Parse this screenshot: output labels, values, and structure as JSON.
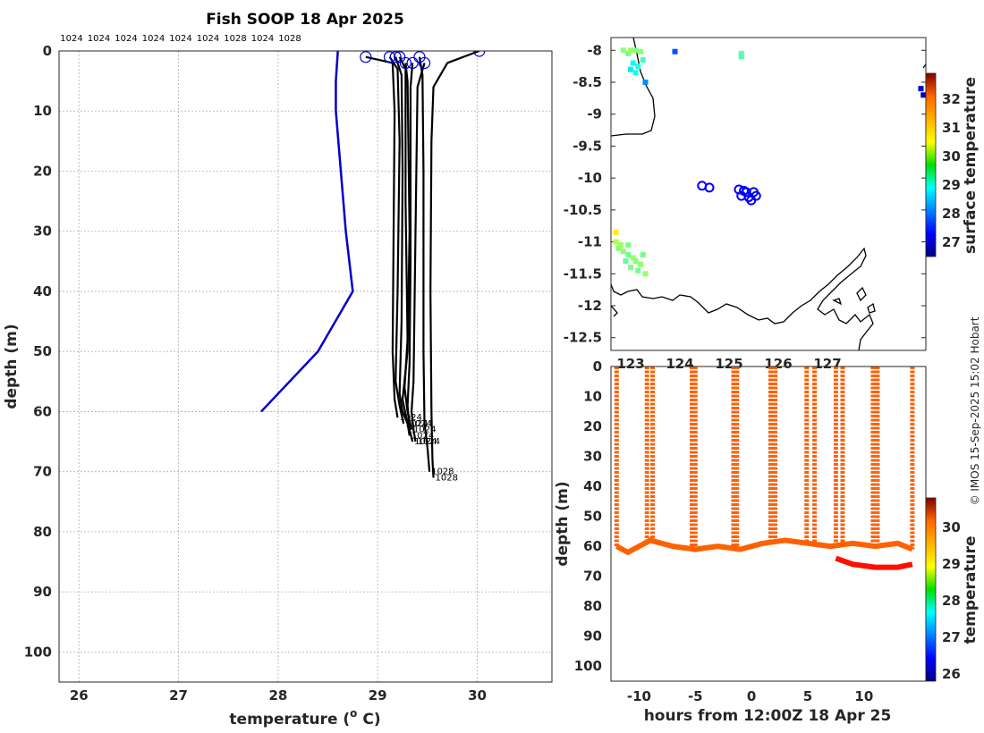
{
  "credit": "© IMOS 15-Sep-2025 15:02 Hobart",
  "chart_data": [
    {
      "type": "line",
      "id": "profile",
      "title": "Fish SOOP 18 Apr 2025",
      "xlabel": "temperature (",
      "xlabel_sup": "o",
      "xlabel_tail": " C)",
      "ylabel": "depth (m)",
      "xlim": [
        25.8,
        30.75
      ],
      "ylim": [
        105,
        0
      ],
      "xticks": [
        26,
        27,
        28,
        29,
        30
      ],
      "yticks": [
        0,
        10,
        20,
        30,
        40,
        50,
        60,
        70,
        80,
        90,
        100
      ],
      "top_labels": [
        "1024",
        "1024",
        "1024",
        "1024",
        "1024",
        "1024",
        "1028",
        "1024",
        "1028"
      ],
      "climatology": {
        "color": "#0000cc",
        "points": [
          [
            28.6,
            0
          ],
          [
            28.58,
            5
          ],
          [
            28.58,
            10
          ],
          [
            28.63,
            20
          ],
          [
            28.68,
            30
          ],
          [
            28.75,
            40
          ],
          [
            28.4,
            50
          ],
          [
            27.83,
            60
          ]
        ]
      },
      "casts": [
        {
          "id": "1024",
          "points": [
            [
              28.88,
              1
            ],
            [
              29.15,
              2
            ],
            [
              29.17,
              10
            ],
            [
              29.16,
              30
            ],
            [
              29.15,
              50
            ],
            [
              29.17,
              58
            ],
            [
              29.2,
              61
            ]
          ]
        },
        {
          "id": "1024",
          "points": [
            [
              29.12,
              1
            ],
            [
              29.2,
              3
            ],
            [
              29.22,
              15
            ],
            [
              29.2,
              40
            ],
            [
              29.18,
              55
            ],
            [
              29.22,
              59
            ],
            [
              29.26,
              62
            ]
          ]
        },
        {
          "id": "1024",
          "points": [
            [
              29.18,
              1
            ],
            [
              29.24,
              4
            ],
            [
              29.25,
              20
            ],
            [
              29.24,
              45
            ],
            [
              29.22,
              57
            ],
            [
              29.25,
              60
            ],
            [
              29.3,
              62
            ]
          ]
        },
        {
          "id": "1024",
          "points": [
            [
              29.22,
              1
            ],
            [
              29.28,
              3
            ],
            [
              29.28,
              25
            ],
            [
              29.3,
              48
            ],
            [
              29.27,
              56
            ],
            [
              29.3,
              60
            ],
            [
              29.34,
              63
            ]
          ]
        },
        {
          "id": "1024",
          "points": [
            [
              29.28,
              2
            ],
            [
              29.3,
              5
            ],
            [
              29.32,
              30
            ],
            [
              29.3,
              50
            ],
            [
              29.25,
              58
            ],
            [
              29.3,
              62
            ],
            [
              29.32,
              64
            ]
          ]
        },
        {
          "id": "1024",
          "points": [
            [
              29.35,
              2
            ],
            [
              29.33,
              6
            ],
            [
              29.33,
              35
            ],
            [
              29.32,
              52
            ],
            [
              29.3,
              59
            ],
            [
              29.32,
              63
            ],
            [
              29.35,
              65
            ]
          ]
        },
        {
          "id": "1028",
          "points": [
            [
              29.42,
              1
            ],
            [
              29.45,
              4
            ],
            [
              29.46,
              20
            ],
            [
              29.46,
              50
            ],
            [
              29.47,
              62
            ],
            [
              29.5,
              66
            ],
            [
              29.52,
              70
            ]
          ]
        },
        {
          "id": "1024",
          "points": [
            [
              29.47,
              2
            ],
            [
              29.4,
              6
            ],
            [
              29.38,
              30
            ],
            [
              29.36,
              55
            ],
            [
              29.34,
              60
            ],
            [
              29.36,
              63
            ],
            [
              29.38,
              65
            ]
          ]
        },
        {
          "id": "1028",
          "points": [
            [
              30.02,
              0
            ],
            [
              29.7,
              2
            ],
            [
              29.56,
              6
            ],
            [
              29.54,
              15
            ],
            [
              29.53,
              40
            ],
            [
              29.54,
              60
            ],
            [
              29.55,
              68
            ],
            [
              29.56,
              71
            ]
          ]
        }
      ],
      "bottom_labels": [
        "1024",
        "1024",
        "1024",
        "1024",
        "1028",
        "1028"
      ]
    },
    {
      "type": "scatter",
      "id": "map",
      "colorbar_label": "surface temperature",
      "xlim": [
        122.6,
        129
      ],
      "ylim": [
        -12.7,
        -7.8
      ],
      "xticks": [
        123,
        124,
        125,
        126,
        127
      ],
      "xtick_labels": [
        "123",
        "124",
        "125",
        "126",
        "127"
      ],
      "yticks": [
        -8,
        -8.5,
        -9,
        -9.5,
        -10,
        -10.5,
        -11,
        -11.5,
        -12,
        -12.5
      ],
      "colorbar_range": [
        26.5,
        32.9
      ],
      "colorbar_ticks": [
        27,
        28,
        29,
        30,
        31,
        32
      ],
      "cast_locations": [
        [
          124.45,
          -10.12
        ],
        [
          124.6,
          -10.15
        ],
        [
          125.2,
          -10.18
        ],
        [
          125.25,
          -10.28
        ],
        [
          125.35,
          -10.22
        ],
        [
          125.4,
          -10.3
        ],
        [
          125.45,
          -10.35
        ],
        [
          125.55,
          -10.28
        ],
        [
          125.3,
          -10.2
        ],
        [
          125.5,
          -10.22
        ]
      ],
      "sst_points": [
        [
          122.85,
          -8.0,
          29.8
        ],
        [
          122.95,
          -8.05,
          29.6
        ],
        [
          123.0,
          -8.0,
          29.9
        ],
        [
          123.1,
          -8.0,
          29.7
        ],
        [
          123.2,
          -8.02,
          29.8
        ],
        [
          123.05,
          -8.2,
          28.9
        ],
        [
          123.15,
          -8.25,
          29.1
        ],
        [
          123.0,
          -8.3,
          28.8
        ],
        [
          123.1,
          -8.35,
          29.0
        ],
        [
          123.25,
          -8.15,
          29.3
        ],
        [
          123.3,
          -8.5,
          28.2
        ],
        [
          125.25,
          -8.05,
          29.5
        ],
        [
          125.25,
          -8.1,
          29.4
        ],
        [
          128.9,
          -8.6,
          27.0
        ],
        [
          128.95,
          -8.7,
          26.9
        ],
        [
          123.9,
          -8.02,
          27.8
        ],
        [
          122.7,
          -11.0,
          30.0
        ],
        [
          122.75,
          -11.1,
          29.7
        ],
        [
          122.85,
          -11.15,
          29.8
        ],
        [
          122.95,
          -11.2,
          29.6
        ],
        [
          123.05,
          -11.25,
          29.9
        ],
        [
          123.1,
          -11.3,
          29.7
        ],
        [
          123.2,
          -11.35,
          29.8
        ],
        [
          123.25,
          -11.2,
          29.6
        ],
        [
          122.9,
          -11.3,
          29.5
        ],
        [
          123.0,
          -11.4,
          29.7
        ],
        [
          122.7,
          -10.85,
          30.6
        ],
        [
          122.8,
          -11.05,
          29.9
        ],
        [
          123.15,
          -11.45,
          29.6
        ],
        [
          123.3,
          -11.5,
          29.8
        ],
        [
          122.95,
          -11.05,
          29.7
        ]
      ]
    },
    {
      "type": "scatter",
      "id": "section",
      "xlabel": "hours from 12:00Z 18 Apr 25",
      "ylabel": "depth (m)",
      "colorbar_label": "temperature",
      "xlim": [
        -12.5,
        15.5
      ],
      "ylim": [
        105,
        0
      ],
      "xticks": [
        -10,
        -5,
        0,
        5,
        10
      ],
      "yticks": [
        0,
        10,
        20,
        30,
        40,
        50,
        60,
        70,
        80,
        90,
        100
      ],
      "colorbar_range": [
        25.8,
        30.8
      ],
      "colorbar_ticks": [
        26,
        27,
        28,
        29,
        30
      ],
      "up_casts": [
        -12.0,
        -9.3,
        -5.3,
        -1.6,
        1.7,
        4.9,
        7.5,
        10.8,
        14.3
      ],
      "down_casts": [
        -8.8,
        -5.0,
        -1.3,
        2.1,
        5.6,
        8.1,
        11.2
      ],
      "seafloor": [
        [
          -12.0,
          60
        ],
        [
          -11.0,
          62
        ],
        [
          -9.0,
          58
        ],
        [
          -7.0,
          60
        ],
        [
          -5.0,
          61
        ],
        [
          -3.0,
          60
        ],
        [
          -1.0,
          61
        ],
        [
          1.0,
          59
        ],
        [
          3.0,
          58
        ],
        [
          5.0,
          59
        ],
        [
          7.0,
          60
        ],
        [
          9.0,
          59
        ],
        [
          11.0,
          60
        ],
        [
          13.0,
          59
        ],
        [
          14.3,
          61
        ]
      ],
      "seafloor_warm": [
        [
          7.5,
          64
        ],
        [
          9.0,
          66
        ],
        [
          11.0,
          67
        ],
        [
          13.0,
          67
        ],
        [
          14.3,
          66
        ]
      ],
      "cast_temperature": 29.7,
      "warm_temperature": 30.1
    }
  ]
}
